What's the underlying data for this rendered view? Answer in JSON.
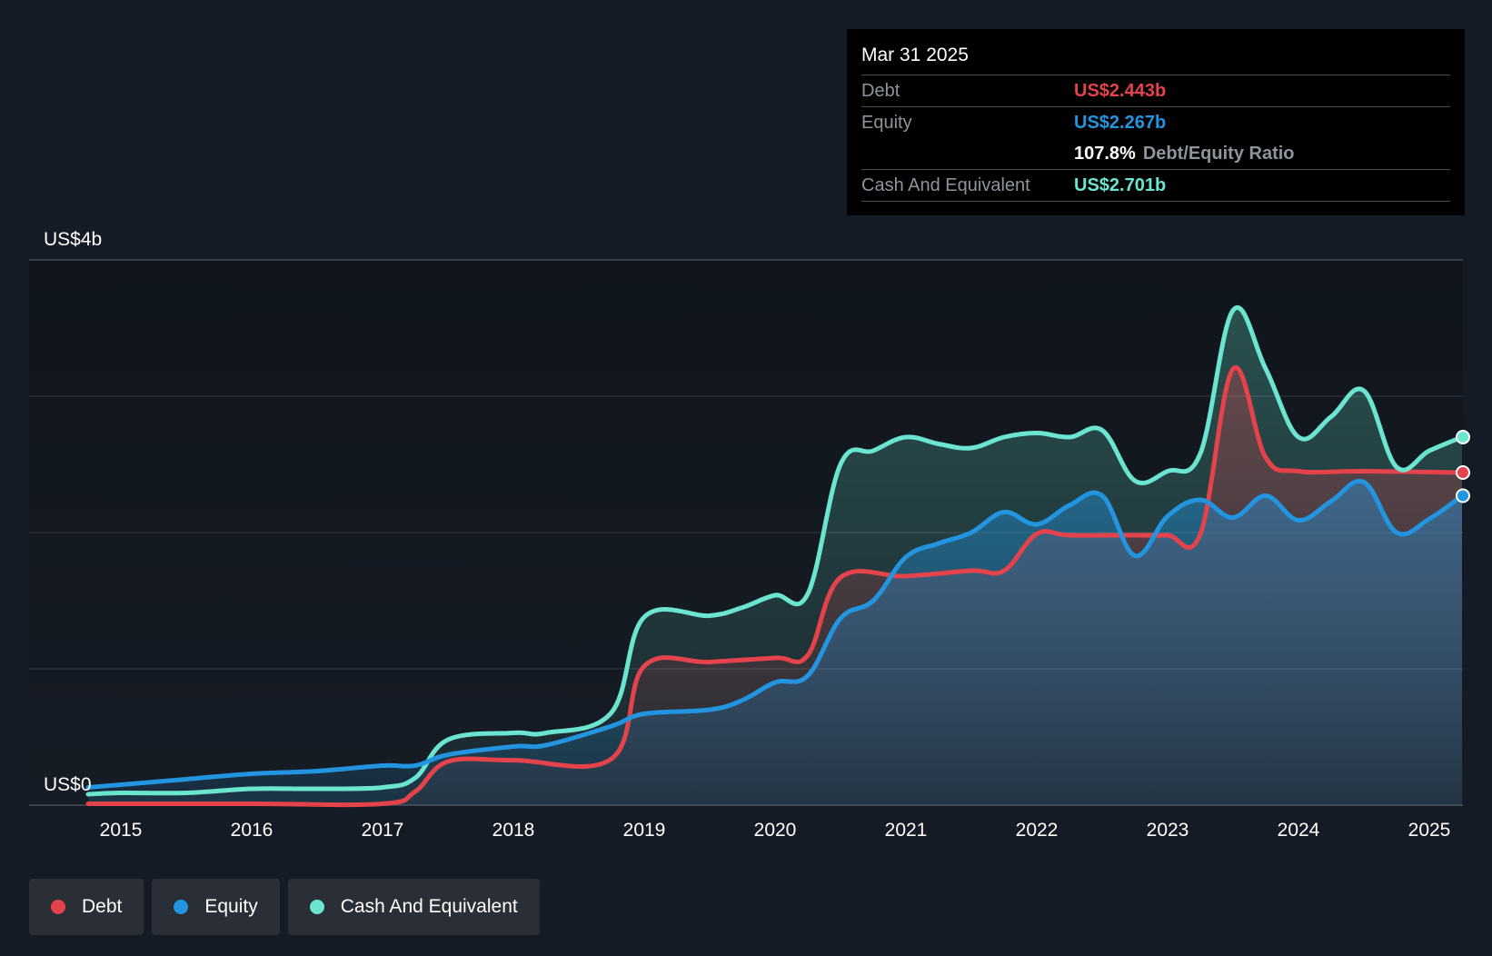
{
  "tooltip": {
    "date": "Mar 31 2025",
    "debt_label": "Debt",
    "debt_value": "US$2.443b",
    "equity_label": "Equity",
    "equity_value": "US$2.267b",
    "ratio_value": "107.8%",
    "ratio_label": "Debt/Equity Ratio",
    "cash_label": "Cash And Equivalent",
    "cash_value": "US$2.701b"
  },
  "legend": [
    {
      "label": "Debt",
      "color": "#e4434b"
    },
    {
      "label": "Equity",
      "color": "#2394df"
    },
    {
      "label": "Cash And Equivalent",
      "color": "#6be5d0"
    }
  ],
  "chart_data": {
    "type": "area",
    "title": "",
    "xlabel": "",
    "ylabel": "",
    "y_label_top": "US$4b",
    "y_label_bottom": "US$0",
    "ylim": [
      0,
      4
    ],
    "xlim": [
      2014.75,
      2025.25
    ],
    "x_ticks": [
      "2015",
      "2016",
      "2017",
      "2018",
      "2019",
      "2020",
      "2021",
      "2022",
      "2023",
      "2024",
      "2025"
    ],
    "grid": true,
    "colors": {
      "debt": "#e4434b",
      "equity": "#2394df",
      "cash": "#6be5d0"
    },
    "series": [
      {
        "name": "Debt",
        "points": [
          [
            2014.75,
            0.01
          ],
          [
            2016.0,
            0.01
          ],
          [
            2017.0,
            0.01
          ],
          [
            2017.25,
            0.1
          ],
          [
            2017.5,
            0.32
          ],
          [
            2018.0,
            0.33
          ],
          [
            2018.75,
            0.34
          ],
          [
            2019.0,
            1.02
          ],
          [
            2019.5,
            1.05
          ],
          [
            2020.0,
            1.08
          ],
          [
            2020.25,
            1.1
          ],
          [
            2020.5,
            1.67
          ],
          [
            2021.0,
            1.68
          ],
          [
            2021.5,
            1.72
          ],
          [
            2021.75,
            1.72
          ],
          [
            2022.0,
            1.99
          ],
          [
            2022.25,
            1.98
          ],
          [
            2022.75,
            1.98
          ],
          [
            2023.0,
            1.98
          ],
          [
            2023.25,
            1.99
          ],
          [
            2023.5,
            3.2
          ],
          [
            2023.75,
            2.55
          ],
          [
            2024.0,
            2.45
          ],
          [
            2024.5,
            2.45
          ],
          [
            2025.25,
            2.44
          ]
        ]
      },
      {
        "name": "Equity",
        "points": [
          [
            2014.75,
            0.13
          ],
          [
            2015.0,
            0.15
          ],
          [
            2015.5,
            0.19
          ],
          [
            2016.0,
            0.23
          ],
          [
            2016.5,
            0.25
          ],
          [
            2017.0,
            0.29
          ],
          [
            2017.25,
            0.29
          ],
          [
            2017.5,
            0.37
          ],
          [
            2018.0,
            0.43
          ],
          [
            2018.25,
            0.44
          ],
          [
            2018.75,
            0.58
          ],
          [
            2019.0,
            0.67
          ],
          [
            2019.5,
            0.7
          ],
          [
            2019.75,
            0.77
          ],
          [
            2020.0,
            0.9
          ],
          [
            2020.25,
            0.95
          ],
          [
            2020.5,
            1.37
          ],
          [
            2020.75,
            1.5
          ],
          [
            2021.0,
            1.82
          ],
          [
            2021.25,
            1.92
          ],
          [
            2021.5,
            2.0
          ],
          [
            2021.75,
            2.15
          ],
          [
            2022.0,
            2.06
          ],
          [
            2022.25,
            2.2
          ],
          [
            2022.5,
            2.27
          ],
          [
            2022.75,
            1.83
          ],
          [
            2023.0,
            2.12
          ],
          [
            2023.25,
            2.24
          ],
          [
            2023.5,
            2.11
          ],
          [
            2023.75,
            2.27
          ],
          [
            2024.0,
            2.09
          ],
          [
            2024.25,
            2.23
          ],
          [
            2024.5,
            2.37
          ],
          [
            2024.75,
            2.0
          ],
          [
            2025.0,
            2.1
          ],
          [
            2025.25,
            2.27
          ]
        ]
      },
      {
        "name": "Cash And Equivalent",
        "points": [
          [
            2014.75,
            0.08
          ],
          [
            2015.0,
            0.09
          ],
          [
            2015.5,
            0.09
          ],
          [
            2016.0,
            0.12
          ],
          [
            2016.5,
            0.12
          ],
          [
            2017.0,
            0.13
          ],
          [
            2017.25,
            0.2
          ],
          [
            2017.5,
            0.48
          ],
          [
            2018.0,
            0.53
          ],
          [
            2018.25,
            0.53
          ],
          [
            2018.75,
            0.68
          ],
          [
            2019.0,
            1.38
          ],
          [
            2019.5,
            1.39
          ],
          [
            2019.75,
            1.45
          ],
          [
            2020.0,
            1.54
          ],
          [
            2020.25,
            1.55
          ],
          [
            2020.5,
            2.5
          ],
          [
            2020.75,
            2.6
          ],
          [
            2021.0,
            2.7
          ],
          [
            2021.25,
            2.65
          ],
          [
            2021.5,
            2.62
          ],
          [
            2021.75,
            2.7
          ],
          [
            2022.0,
            2.73
          ],
          [
            2022.25,
            2.7
          ],
          [
            2022.5,
            2.75
          ],
          [
            2022.75,
            2.38
          ],
          [
            2023.0,
            2.45
          ],
          [
            2023.25,
            2.58
          ],
          [
            2023.5,
            3.63
          ],
          [
            2023.75,
            3.2
          ],
          [
            2024.0,
            2.7
          ],
          [
            2024.25,
            2.85
          ],
          [
            2024.5,
            3.04
          ],
          [
            2024.75,
            2.48
          ],
          [
            2025.0,
            2.6
          ],
          [
            2025.25,
            2.7
          ]
        ]
      }
    ]
  }
}
